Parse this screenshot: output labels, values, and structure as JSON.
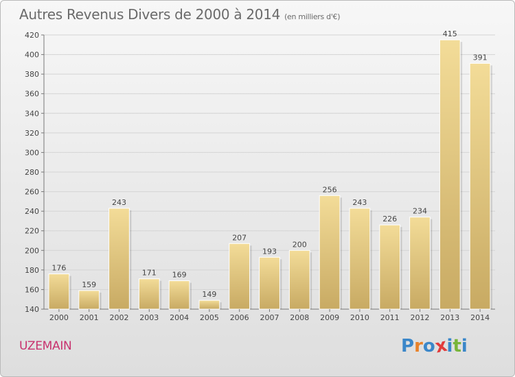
{
  "chart_data": {
    "type": "bar",
    "title": "Autres Revenus Divers de 2000 à 2014",
    "subtitle": "(en milliers d'€)",
    "categories": [
      "2000",
      "2001",
      "2002",
      "2003",
      "2004",
      "2005",
      "2006",
      "2007",
      "2008",
      "2009",
      "2010",
      "2011",
      "2012",
      "2013",
      "2014"
    ],
    "values": [
      176,
      159,
      243,
      171,
      169,
      149,
      207,
      193,
      200,
      256,
      243,
      226,
      234,
      415,
      391
    ],
    "ylim": [
      140,
      420
    ],
    "yticks": [
      140,
      160,
      180,
      200,
      220,
      240,
      260,
      280,
      300,
      320,
      340,
      360,
      380,
      400,
      420
    ],
    "grid": true,
    "bar_color": "#e8cf88"
  },
  "footer": {
    "commune": "UZEMAIN",
    "logo": [
      "P",
      "r",
      "o",
      "x",
      "i",
      "t",
      "i"
    ],
    "logo_colors": [
      "#3b87c9",
      "#e8822a",
      "#3b87c9",
      "#e23b3b",
      "#3b87c9",
      "#78b53a",
      "#3b87c9"
    ]
  }
}
